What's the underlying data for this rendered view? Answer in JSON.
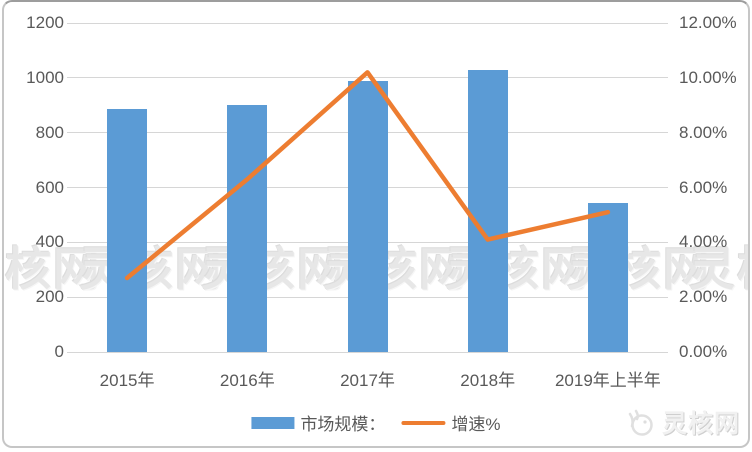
{
  "chart_data": {
    "type": "bar",
    "subtype": "combo-bar-line",
    "categories": [
      "2015年",
      "2016年",
      "2017年",
      "2018年",
      "2019年上半年"
    ],
    "series": [
      {
        "name": "市场规模：",
        "type": "bar",
        "axis": "left",
        "color": "#5b9bd5",
        "values": [
          885,
          900,
          990,
          1030,
          545
        ]
      },
      {
        "name": "增速%",
        "type": "line",
        "axis": "right",
        "color": "#ed7d31",
        "values": [
          2.7,
          6.3,
          10.2,
          4.1,
          5.1
        ]
      }
    ],
    "left_axis": {
      "min": 0,
      "max": 1200,
      "ticks": [
        "1200",
        "1000",
        "800",
        "600",
        "400",
        "200",
        "0"
      ]
    },
    "right_axis": {
      "min": 0,
      "max": 12,
      "ticks": [
        "12.00%",
        "10.00%",
        "8.00%",
        "6.00%",
        "4.00%",
        "2.00%",
        "0.00%"
      ]
    },
    "grid": true,
    "legend_position": "bottom",
    "title": ""
  },
  "legend": {
    "bar_label": "市场规模：",
    "line_label": "增速%"
  },
  "watermark": {
    "text": "灵核网",
    "count": 7
  },
  "logo": {
    "text": "灵核网"
  },
  "colors": {
    "bar": "#5b9bd5",
    "line": "#ed7d31",
    "gridline": "#d6d6d6",
    "axis_text": "#595959",
    "watermark": "#e7e7e7"
  }
}
